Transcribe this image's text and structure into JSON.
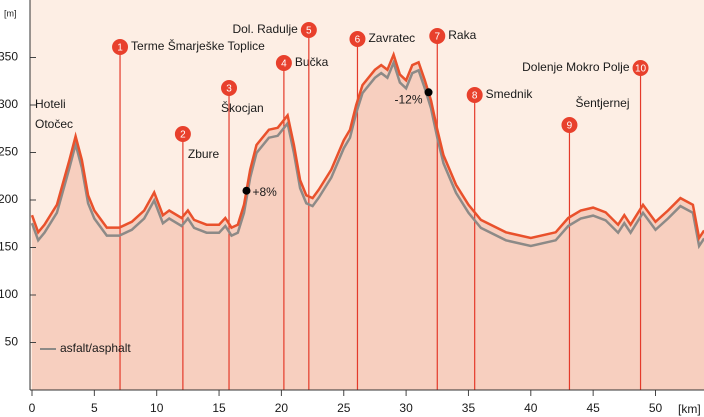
{
  "chart_data": {
    "type": "elevation-profile",
    "y_unit": "[m]",
    "x_unit": "[km]",
    "xlim": [
      0,
      53.9
    ],
    "ylim": [
      0,
      400
    ],
    "xticks": [
      0,
      5,
      10,
      15,
      20,
      25,
      30,
      35,
      40,
      45,
      50
    ],
    "yticks": [
      50,
      100,
      150,
      200,
      250,
      300,
      350
    ],
    "x": [
      0,
      0.5,
      1,
      2,
      3,
      3.5,
      4,
      4.5,
      5,
      6,
      7,
      8,
      9,
      9.8,
      10.5,
      11,
      12,
      12.5,
      13,
      14,
      15,
      15.5,
      16,
      16.5,
      17,
      17.5,
      18,
      19,
      19.7,
      20.5,
      21,
      21.5,
      22,
      22.5,
      23,
      24,
      25,
      25.5,
      26,
      26.5,
      27.5,
      28,
      28.5,
      29,
      29.5,
      30,
      30.5,
      31,
      31.5,
      32,
      32.5,
      33,
      34,
      35,
      36,
      38,
      40,
      42,
      43,
      44,
      45,
      46,
      47,
      47.5,
      48,
      49,
      50,
      51,
      52,
      53,
      53.5,
      53.9
    ],
    "series": [
      {
        "name": "asfalt/asphalt",
        "color": "#e9512c",
        "shadow_color": "#8d8a87",
        "values": [
          184,
          166,
          174,
          195,
          242,
          267,
          242,
          205,
          189,
          171,
          171,
          177,
          189,
          208,
          184,
          189,
          181,
          189,
          179,
          174,
          174,
          181,
          171,
          174,
          195,
          232,
          258,
          274,
          276,
          289,
          258,
          221,
          205,
          202,
          211,
          232,
          263,
          274,
          300,
          321,
          337,
          342,
          337,
          353,
          332,
          326,
          342,
          345,
          326,
          305,
          274,
          247,
          216,
          195,
          179,
          166,
          160,
          166,
          181,
          189,
          192,
          187,
          174,
          184,
          174,
          195,
          177,
          189,
          202,
          195,
          160,
          168
        ]
      }
    ],
    "start_label": [
      "Hoteli",
      "Otočec"
    ],
    "waypoints": [
      {
        "number": "1",
        "name": "Terme Šmarješke Toplice",
        "km": 7.06
      },
      {
        "number": "2",
        "name": "Zbure",
        "km": 12.1
      },
      {
        "number": "3",
        "name": "Škocjan",
        "km": 15.8
      },
      {
        "number": "4",
        "name": "Bučka",
        "km": 20.2
      },
      {
        "number": "5",
        "name": "Dol. Radulje",
        "km": 22.2
      },
      {
        "number": "6",
        "name": "Zavratec",
        "km": 26.1
      },
      {
        "number": "7",
        "name": "Raka",
        "km": 32.5
      },
      {
        "number": "8",
        "name": "Smednik",
        "km": 35.5
      },
      {
        "number": "9",
        "name": "Šentjernej",
        "km": 43.1
      },
      {
        "number": "10",
        "name": "Dolenje Mokro Polje",
        "km": 48.8
      }
    ],
    "grades": [
      {
        "km": 17.2,
        "label": "+8%"
      },
      {
        "km": 31.8,
        "label": "-12%"
      }
    ]
  }
}
